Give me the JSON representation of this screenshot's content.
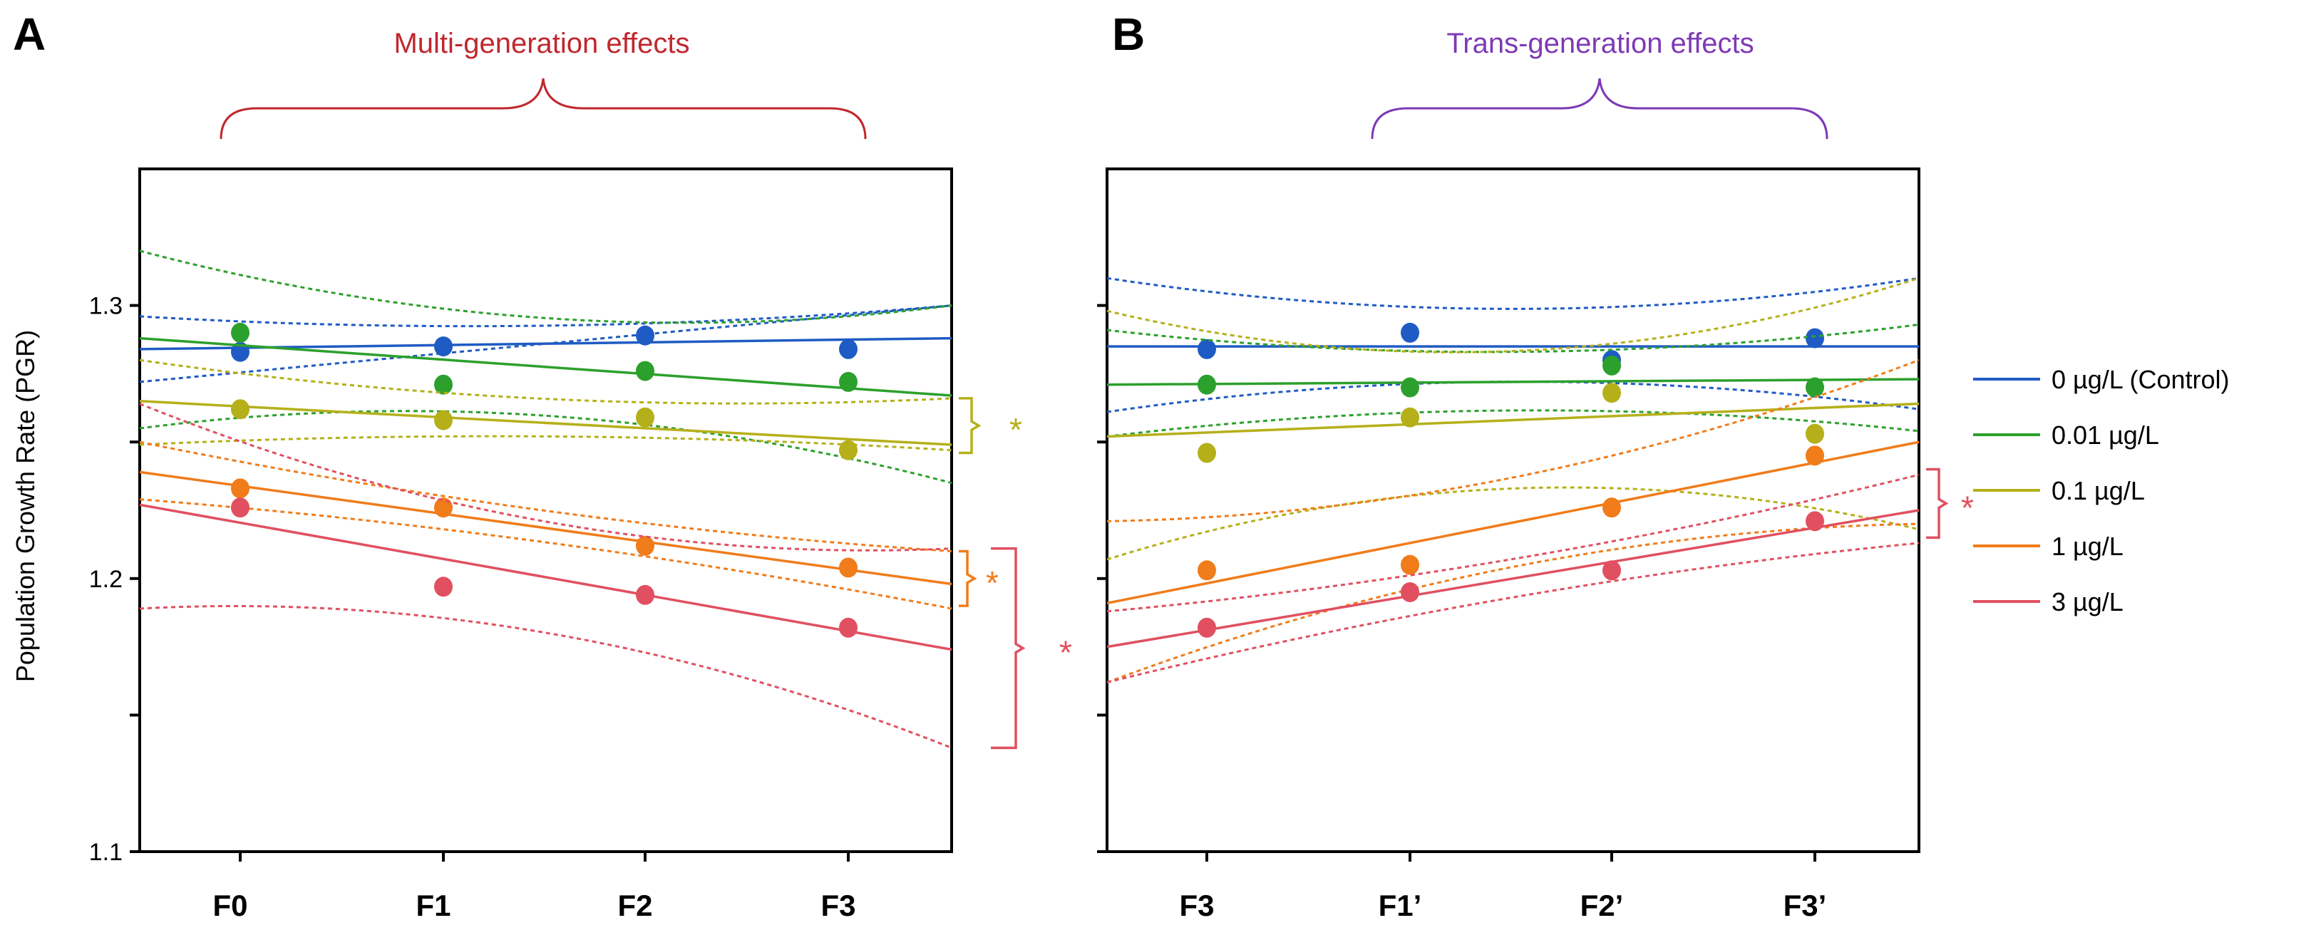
{
  "panels": {
    "a": {
      "letter": "A",
      "header": "Multi-generation effects",
      "header_color": "#c0272d"
    },
    "b": {
      "letter": "B",
      "header": "Trans-generation effects",
      "header_color": "#7e3ab5"
    }
  },
  "y_axis_label": "Population Growth Rate (PGR)",
  "legend": [
    {
      "label": "0 µg/L (Control)",
      "color": "#1f5bc4"
    },
    {
      "label": "0.01 µg/L",
      "color": "#2ca02c"
    },
    {
      "label": "0.1 µg/L",
      "color": "#b5b01a"
    },
    {
      "label": "1 µg/L",
      "color": "#f07c1a"
    },
    {
      "label": "3 µg/L",
      "color": "#e05060"
    }
  ],
  "significance": [
    {
      "panel": "a",
      "series": "0.1 µg/L",
      "symbol": "*",
      "y_range": [
        1.246,
        1.266
      ],
      "color": "#b5b01a"
    },
    {
      "panel": "a",
      "series": "1 µg/L",
      "symbol": "*",
      "y_range": [
        1.19,
        1.21
      ],
      "color": "#f07c1a"
    },
    {
      "panel": "a",
      "series": "3 µg/L",
      "symbol": "*",
      "y_range": [
        1.138,
        1.211
      ],
      "color": "#e05060"
    },
    {
      "panel": "b",
      "series": "3 µg/L",
      "symbol": "*",
      "y_range": [
        1.215,
        1.24
      ],
      "color": "#e05060"
    }
  ],
  "chart_data": [
    {
      "type": "scatter",
      "panel": "A",
      "title": "Multi-generation effects",
      "xlabel": "",
      "ylabel": "Population Growth Rate (PGR)",
      "categories": [
        "F0",
        "F1",
        "F2",
        "F3"
      ],
      "ylim": [
        1.1,
        1.35
      ],
      "yticks": [
        1.1,
        1.2,
        1.3
      ],
      "yticks_unlabeled": [
        1.15,
        1.25
      ],
      "grid": false,
      "series": [
        {
          "name": "0 µg/L (Control)",
          "color": "#1f5bc4",
          "values": [
            1.283,
            1.285,
            1.289,
            1.284
          ],
          "fit": [
            1.284,
            1.288
          ],
          "ci_upper": [
            1.296,
            1.3
          ],
          "ci_lower": [
            1.272,
            1.3
          ]
        },
        {
          "name": "0.01 µg/L",
          "color": "#2ca02c",
          "values": [
            1.29,
            1.271,
            1.276,
            1.272
          ],
          "fit": [
            1.288,
            1.267
          ],
          "ci_upper": [
            1.32,
            1.3
          ],
          "ci_lower": [
            1.255,
            1.235
          ]
        },
        {
          "name": "0.1 µg/L",
          "color": "#b5b01a",
          "values": [
            1.262,
            1.258,
            1.259,
            1.247
          ],
          "fit": [
            1.265,
            1.249
          ],
          "ci_upper": [
            1.28,
            1.266
          ],
          "ci_lower": [
            1.249,
            1.247
          ]
        },
        {
          "name": "1 µg/L",
          "color": "#f07c1a",
          "values": [
            1.233,
            1.226,
            1.212,
            1.204
          ],
          "fit": [
            1.239,
            1.198
          ],
          "ci_upper": [
            1.25,
            1.21
          ],
          "ci_lower": [
            1.229,
            1.189
          ]
        },
        {
          "name": "3 µg/L",
          "color": "#e05060",
          "values": [
            1.226,
            1.197,
            1.194,
            1.182
          ],
          "fit": [
            1.227,
            1.174
          ],
          "ci_upper": [
            1.264,
            1.211
          ],
          "ci_lower": [
            1.189,
            1.138
          ]
        }
      ]
    },
    {
      "type": "scatter",
      "panel": "B",
      "title": "Trans-generation effects",
      "xlabel": "",
      "ylabel": "",
      "categories": [
        "F3",
        "F1’",
        "F2’",
        "F3’"
      ],
      "ylim": [
        1.1,
        1.35
      ],
      "yticks": [
        1.1,
        1.2,
        1.3
      ],
      "yticks_unlabeled": [
        1.15,
        1.25
      ],
      "grid": false,
      "series": [
        {
          "name": "0 µg/L (Control)",
          "color": "#1f5bc4",
          "values": [
            1.284,
            1.29,
            1.28,
            1.288
          ],
          "fit": [
            1.285,
            1.285
          ],
          "ci_upper": [
            1.31,
            1.31
          ],
          "ci_lower": [
            1.261,
            1.262
          ]
        },
        {
          "name": "0.01 µg/L",
          "color": "#2ca02c",
          "values": [
            1.271,
            1.27,
            1.278,
            1.27
          ],
          "fit": [
            1.271,
            1.273
          ],
          "ci_upper": [
            1.291,
            1.293
          ],
          "ci_lower": [
            1.252,
            1.254
          ]
        },
        {
          "name": "0.1 µg/L",
          "color": "#b5b01a",
          "values": [
            1.246,
            1.259,
            1.268,
            1.253
          ],
          "fit": [
            1.252,
            1.264
          ],
          "ci_upper": [
            1.298,
            1.31
          ],
          "ci_lower": [
            1.207,
            1.218
          ]
        },
        {
          "name": "1 µg/L",
          "color": "#f07c1a",
          "values": [
            1.203,
            1.205,
            1.226,
            1.245
          ],
          "fit": [
            1.191,
            1.25
          ],
          "ci_upper": [
            1.221,
            1.28
          ],
          "ci_lower": [
            1.162,
            1.22
          ]
        },
        {
          "name": "3 µg/L",
          "color": "#e05060",
          "values": [
            1.182,
            1.195,
            1.203,
            1.221
          ],
          "fit": [
            1.175,
            1.225
          ],
          "ci_upper": [
            1.188,
            1.238
          ],
          "ci_lower": [
            1.162,
            1.213
          ]
        }
      ]
    }
  ]
}
